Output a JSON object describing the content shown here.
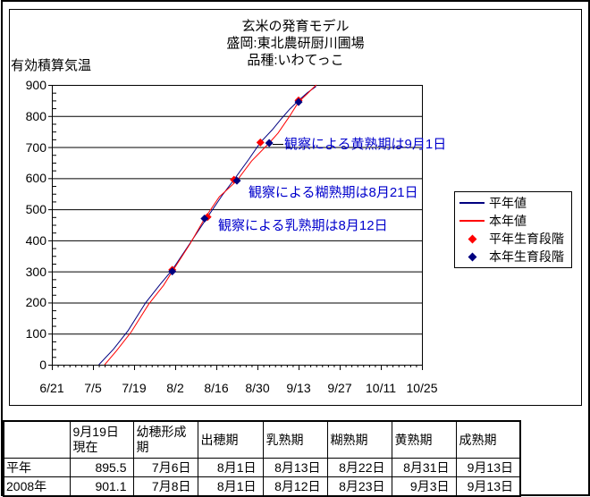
{
  "chart": {
    "title_lines": [
      "玄米の発育モデル",
      "盛岡:東北農研厨川圃場",
      "品種:いわてっこ"
    ],
    "y_axis_label": "有効積算気温",
    "colors": {
      "normal_line": "#000080",
      "current_line": "#FF0000",
      "normal_stage_marker": "#FF0000",
      "current_stage_marker": "#000080",
      "annotation_text": "#0000CC",
      "axis": "#000000"
    },
    "legend": {
      "items": [
        {
          "label": "平年値",
          "type": "line",
          "color": "#000080"
        },
        {
          "label": "本年値",
          "type": "line",
          "color": "#FF0000"
        },
        {
          "label": "平年生育段階",
          "type": "diamond",
          "color": "#FF0000"
        },
        {
          "label": "本年生育段階",
          "type": "diamond",
          "color": "#000080"
        }
      ]
    },
    "annotations": [
      {
        "text": "観察による黄熟期は9月1日"
      },
      {
        "text": "観察による糊熟期は8月21日"
      },
      {
        "text": "観察による乳熟期は8月12日"
      }
    ]
  },
  "chart_data": {
    "type": "line",
    "title": "玄米の発育モデル 盛岡:東北農研厨川圃場 品種:いわてっこ",
    "xlabel": "",
    "ylabel": "有効積算気温",
    "ylim": [
      0,
      900
    ],
    "y_ticks": [
      0,
      100,
      200,
      300,
      400,
      500,
      600,
      700,
      800,
      900
    ],
    "x_tick_labels": [
      "6/21",
      "7/5",
      "7/19",
      "8/2",
      "8/16",
      "8/30",
      "9/13",
      "9/27",
      "10/11",
      "10/25"
    ],
    "grid": "horizontal",
    "legend_position": "right",
    "series": [
      {
        "name": "平年値",
        "color": "#000080",
        "points": [
          [
            "7/7",
            0
          ],
          [
            "7/12",
            50
          ],
          [
            "7/17",
            110
          ],
          [
            "7/23",
            200
          ],
          [
            "7/28",
            260
          ],
          [
            "8/1",
            305
          ],
          [
            "8/7",
            390
          ],
          [
            "8/13",
            475
          ],
          [
            "8/18",
            545
          ],
          [
            "8/22",
            595
          ],
          [
            "8/27",
            660
          ],
          [
            "8/31",
            715
          ],
          [
            "9/4",
            755
          ],
          [
            "9/7",
            790
          ],
          [
            "9/10",
            822
          ],
          [
            "9/13",
            850
          ],
          [
            "9/16",
            875
          ],
          [
            "9/19",
            895.5
          ]
        ]
      },
      {
        "name": "本年値",
        "color": "#FF0000",
        "points": [
          [
            "7/9",
            0
          ],
          [
            "7/13",
            45
          ],
          [
            "7/18",
            105
          ],
          [
            "7/24",
            195
          ],
          [
            "7/29",
            255
          ],
          [
            "8/1",
            300
          ],
          [
            "8/7",
            388
          ],
          [
            "8/12",
            470
          ],
          [
            "8/17",
            540
          ],
          [
            "8/23",
            592
          ],
          [
            "8/28",
            655
          ],
          [
            "9/3",
            713
          ],
          [
            "9/6",
            745
          ],
          [
            "9/10",
            800
          ],
          [
            "9/13",
            845
          ],
          [
            "9/16",
            872
          ],
          [
            "9/19",
            900
          ]
        ]
      }
    ],
    "markers": [
      {
        "name": "平年生育段階",
        "color": "#FF0000",
        "points": [
          [
            "8/1",
            305
          ],
          [
            "8/13",
            475
          ],
          [
            "8/22",
            595
          ],
          [
            "8/31",
            715
          ],
          [
            "9/13",
            850
          ]
        ]
      },
      {
        "name": "本年生育段階",
        "color": "#000080",
        "points": [
          [
            "8/1",
            300
          ],
          [
            "8/12",
            470
          ],
          [
            "8/23",
            592
          ],
          [
            "9/3",
            713
          ],
          [
            "9/13",
            845
          ]
        ]
      }
    ],
    "annotations": [
      {
        "text": "観察による黄熟期は9月1日"
      },
      {
        "text": "観察による糊熟期は8月21日"
      },
      {
        "text": "観察による乳熟期は8月12日"
      }
    ]
  },
  "table": {
    "headers": [
      "",
      "9月19日現在",
      "幼穂形成期",
      "出穂期",
      "乳熟期",
      "糊熟期",
      "黄熟期",
      "成熟期"
    ],
    "rows": [
      {
        "label": "平年",
        "cells": [
          "895.5",
          "7月6日",
          "8月1日",
          "8月13日",
          "8月22日",
          "8月31日",
          "9月13日"
        ]
      },
      {
        "label": "2008年",
        "cells": [
          "901.1",
          "7月8日",
          "8月1日",
          "8月12日",
          "8月23日",
          "9月3日",
          "9月13日"
        ]
      }
    ]
  }
}
